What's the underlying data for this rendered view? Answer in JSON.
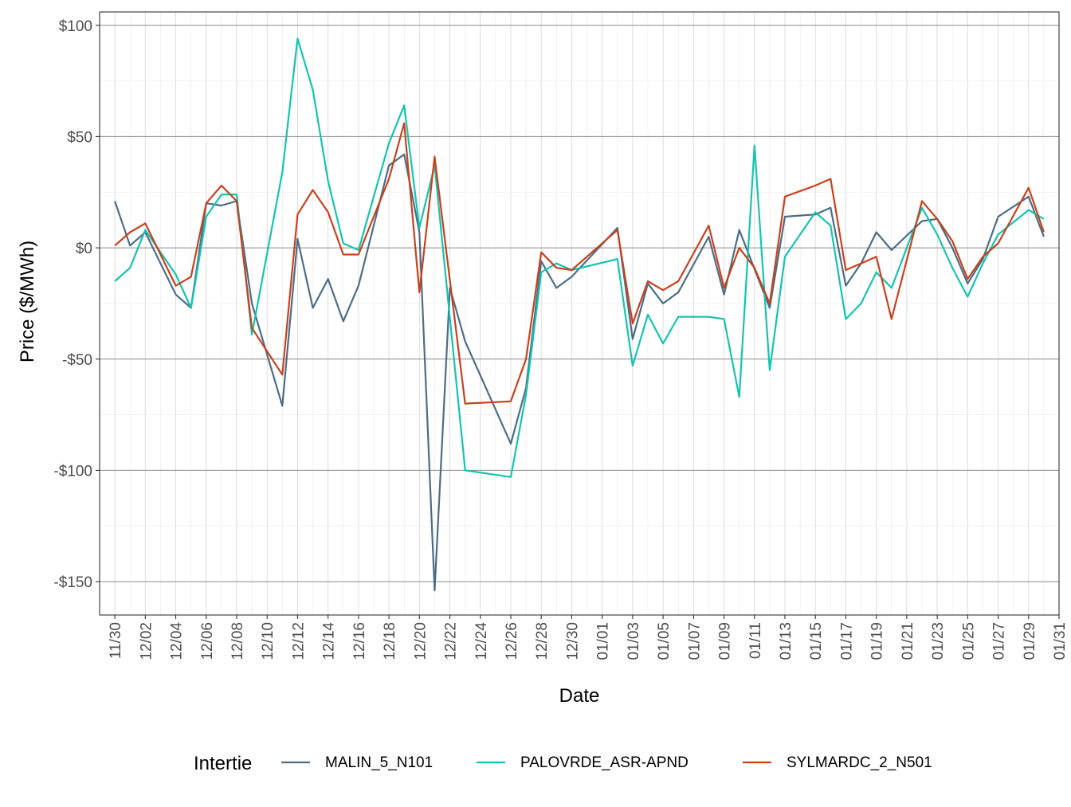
{
  "chart_data": {
    "type": "line",
    "title": "",
    "xlabel": "Date",
    "ylabel": "Price ($/MWh)",
    "ylim": [
      -165,
      106
    ],
    "xlim": [
      "2021-11-29",
      "2022-01-31"
    ],
    "y_ticks": [
      100,
      50,
      0,
      -50,
      -100,
      -150
    ],
    "y_tick_labels": [
      "$100",
      "$50",
      "$0",
      "-$50",
      "-$100",
      "-$150"
    ],
    "x_ticks": [
      "2021-11-30",
      "2021-12-02",
      "2021-12-04",
      "2021-12-06",
      "2021-12-08",
      "2021-12-10",
      "2021-12-12",
      "2021-12-14",
      "2021-12-16",
      "2021-12-18",
      "2021-12-20",
      "2021-12-22",
      "2021-12-24",
      "2021-12-26",
      "2021-12-28",
      "2021-12-30",
      "2022-01-01",
      "2022-01-03",
      "2022-01-05",
      "2022-01-07",
      "2022-01-09",
      "2022-01-11",
      "2022-01-13",
      "2022-01-15",
      "2022-01-17",
      "2022-01-19",
      "2022-01-21",
      "2022-01-23",
      "2022-01-25",
      "2022-01-27",
      "2022-01-29",
      "2022-01-31"
    ],
    "x_tick_labels": [
      "11/30",
      "12/02",
      "12/04",
      "12/06",
      "12/08",
      "12/10",
      "12/12",
      "12/14",
      "12/16",
      "12/18",
      "12/20",
      "12/22",
      "12/24",
      "12/26",
      "12/28",
      "12/30",
      "01/01",
      "01/03",
      "01/05",
      "01/07",
      "01/09",
      "01/11",
      "01/13",
      "01/15",
      "01/17",
      "01/19",
      "01/21",
      "01/23",
      "01/25",
      "01/27",
      "01/29",
      "01/31"
    ],
    "grid": true,
    "legend": {
      "title": "Intertie",
      "position": "bottom"
    },
    "series": [
      {
        "name": "MALIN_5_N101",
        "color": "#4d6d85",
        "points": [
          [
            "2021-11-30",
            21
          ],
          [
            "2021-12-01",
            1
          ],
          [
            "2021-12-02",
            7
          ],
          [
            "2021-12-04",
            -21
          ],
          [
            "2021-12-05",
            -27
          ],
          [
            "2021-12-06",
            20
          ],
          [
            "2021-12-07",
            19
          ],
          [
            "2021-12-08",
            21
          ],
          [
            "2021-12-09",
            -25
          ],
          [
            "2021-12-11",
            -71
          ],
          [
            "2021-12-12",
            4
          ],
          [
            "2021-12-13",
            -27
          ],
          [
            "2021-12-14",
            -14
          ],
          [
            "2021-12-15",
            -33
          ],
          [
            "2021-12-16",
            -17
          ],
          [
            "2021-12-18",
            37
          ],
          [
            "2021-12-19",
            42
          ],
          [
            "2021-12-20",
            7
          ],
          [
            "2021-12-21",
            -154
          ],
          [
            "2021-12-22",
            -18
          ],
          [
            "2021-12-23",
            -42
          ],
          [
            "2021-12-26",
            -88
          ],
          [
            "2021-12-27",
            -63
          ],
          [
            "2021-12-28",
            -6
          ],
          [
            "2021-12-29",
            -18
          ],
          [
            "2021-12-30",
            -13
          ],
          [
            "2022-01-02",
            9
          ],
          [
            "2022-01-03",
            -41
          ],
          [
            "2022-01-04",
            -16
          ],
          [
            "2022-01-05",
            -25
          ],
          [
            "2022-01-06",
            -20
          ],
          [
            "2022-01-08",
            5
          ],
          [
            "2022-01-09",
            -21
          ],
          [
            "2022-01-10",
            8
          ],
          [
            "2022-01-12",
            -27
          ],
          [
            "2022-01-13",
            14
          ],
          [
            "2022-01-15",
            15
          ],
          [
            "2022-01-16",
            18
          ],
          [
            "2022-01-17",
            -17
          ],
          [
            "2022-01-18",
            -7
          ],
          [
            "2022-01-19",
            7
          ],
          [
            "2022-01-20",
            -1
          ],
          [
            "2022-01-22",
            12
          ],
          [
            "2022-01-23",
            13
          ],
          [
            "2022-01-24",
            0
          ],
          [
            "2022-01-25",
            -16
          ],
          [
            "2022-01-26",
            -5
          ],
          [
            "2022-01-27",
            14
          ],
          [
            "2022-01-29",
            23
          ],
          [
            "2022-01-30",
            5
          ]
        ]
      },
      {
        "name": "PALOVRDE_ASR-APND",
        "color": "#14c4b0",
        "points": [
          [
            "2021-11-30",
            -15
          ],
          [
            "2021-12-01",
            -9
          ],
          [
            "2021-12-02",
            8
          ],
          [
            "2021-12-04",
            -12
          ],
          [
            "2021-12-05",
            -27
          ],
          [
            "2021-12-06",
            14
          ],
          [
            "2021-12-07",
            24
          ],
          [
            "2021-12-08",
            24
          ],
          [
            "2021-12-09",
            -39
          ],
          [
            "2021-12-11",
            34
          ],
          [
            "2021-12-12",
            94
          ],
          [
            "2021-12-13",
            71
          ],
          [
            "2021-12-14",
            30
          ],
          [
            "2021-12-15",
            2
          ],
          [
            "2021-12-16",
            -1
          ],
          [
            "2021-12-18",
            47
          ],
          [
            "2021-12-19",
            64
          ],
          [
            "2021-12-20",
            9
          ],
          [
            "2021-12-21",
            37
          ],
          [
            "2021-12-23",
            -100
          ],
          [
            "2021-12-26",
            -103
          ],
          [
            "2021-12-27",
            -66
          ],
          [
            "2021-12-28",
            -11
          ],
          [
            "2021-12-29",
            -7
          ],
          [
            "2021-12-30",
            -10
          ],
          [
            "2022-01-02",
            -5
          ],
          [
            "2022-01-03",
            -53
          ],
          [
            "2022-01-04",
            -30
          ],
          [
            "2022-01-05",
            -43
          ],
          [
            "2022-01-06",
            -31
          ],
          [
            "2022-01-08",
            -31
          ],
          [
            "2022-01-09",
            -32
          ],
          [
            "2022-01-10",
            -67
          ],
          [
            "2022-01-11",
            46
          ],
          [
            "2022-01-12",
            -55
          ],
          [
            "2022-01-13",
            -4
          ],
          [
            "2022-01-15",
            16
          ],
          [
            "2022-01-16",
            10
          ],
          [
            "2022-01-17",
            -32
          ],
          [
            "2022-01-18",
            -25
          ],
          [
            "2022-01-19",
            -11
          ],
          [
            "2022-01-20",
            -18
          ],
          [
            "2022-01-22",
            18
          ],
          [
            "2022-01-23",
            6
          ],
          [
            "2022-01-24",
            -9
          ],
          [
            "2022-01-25",
            -22
          ],
          [
            "2022-01-26",
            -7
          ],
          [
            "2022-01-27",
            6
          ],
          [
            "2022-01-29",
            17
          ],
          [
            "2022-01-30",
            13
          ]
        ]
      },
      {
        "name": "SYLMARDC_2_N501",
        "color": "#c8411e",
        "points": [
          [
            "2021-11-30",
            1
          ],
          [
            "2021-12-01",
            7
          ],
          [
            "2021-12-02",
            11
          ],
          [
            "2021-12-04",
            -17
          ],
          [
            "2021-12-05",
            -13
          ],
          [
            "2021-12-06",
            20
          ],
          [
            "2021-12-07",
            28
          ],
          [
            "2021-12-08",
            21
          ],
          [
            "2021-12-09",
            -36
          ],
          [
            "2021-12-11",
            -57
          ],
          [
            "2021-12-12",
            15
          ],
          [
            "2021-12-13",
            26
          ],
          [
            "2021-12-14",
            16
          ],
          [
            "2021-12-15",
            -3
          ],
          [
            "2021-12-16",
            -3
          ],
          [
            "2021-12-18",
            31
          ],
          [
            "2021-12-19",
            56
          ],
          [
            "2021-12-20",
            -20
          ],
          [
            "2021-12-21",
            41
          ],
          [
            "2021-12-23",
            -70
          ],
          [
            "2021-12-26",
            -69
          ],
          [
            "2021-12-27",
            -50
          ],
          [
            "2021-12-28",
            -2
          ],
          [
            "2021-12-29",
            -9
          ],
          [
            "2021-12-30",
            -10
          ],
          [
            "2022-01-02",
            8
          ],
          [
            "2022-01-03",
            -34
          ],
          [
            "2022-01-04",
            -15
          ],
          [
            "2022-01-05",
            -19
          ],
          [
            "2022-01-06",
            -15
          ],
          [
            "2022-01-08",
            10
          ],
          [
            "2022-01-09",
            -18
          ],
          [
            "2022-01-10",
            0
          ],
          [
            "2022-01-11",
            -9
          ],
          [
            "2022-01-12",
            -25
          ],
          [
            "2022-01-13",
            23
          ],
          [
            "2022-01-15",
            28
          ],
          [
            "2022-01-16",
            31
          ],
          [
            "2022-01-17",
            -10
          ],
          [
            "2022-01-18",
            -7
          ],
          [
            "2022-01-19",
            -4
          ],
          [
            "2022-01-20",
            -32
          ],
          [
            "2022-01-22",
            21
          ],
          [
            "2022-01-23",
            13
          ],
          [
            "2022-01-24",
            3
          ],
          [
            "2022-01-25",
            -14
          ],
          [
            "2022-01-26",
            -4
          ],
          [
            "2022-01-27",
            2
          ],
          [
            "2022-01-29",
            27
          ],
          [
            "2022-01-30",
            7
          ]
        ]
      }
    ]
  }
}
